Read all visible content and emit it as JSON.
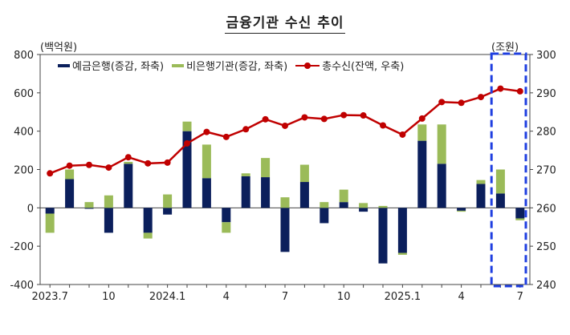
{
  "title": "금융기관 수신 추이",
  "left_unit": "(백억원)",
  "right_unit": "(조원)",
  "colors": {
    "bank": "#0b1f5c",
    "nonbank": "#9bbb59",
    "total": "#c00000",
    "highlight": "#1f3fe0"
  },
  "chart_data": {
    "type": "bar",
    "categories": [
      "2023.7",
      "2023.8",
      "2023.9",
      "2023.10",
      "2023.11",
      "2023.12",
      "2024.1",
      "2024.2",
      "2024.3",
      "2024.4",
      "2024.5",
      "2024.6",
      "2024.7",
      "2024.8",
      "2024.9",
      "2024.10",
      "2024.11",
      "2024.12",
      "2025.1",
      "2025.2",
      "2025.3",
      "2025.4",
      "2025.5",
      "2025.6",
      "2025.7"
    ],
    "x_tick_labels": [
      "2023.7",
      "",
      "",
      "10",
      "",
      "",
      "2024.1",
      "",
      "",
      "4",
      "",
      "",
      "7",
      "",
      "",
      "10",
      "",
      "",
      "2025.1",
      "",
      "",
      "4",
      "",
      "",
      "7"
    ],
    "series": [
      {
        "name": "예금은행(증감, 좌축)",
        "type": "bar",
        "axis": "left",
        "values": [
          -30,
          150,
          -5,
          -130,
          230,
          -130,
          -35,
          400,
          155,
          -75,
          165,
          160,
          -230,
          135,
          -80,
          30,
          -20,
          -290,
          -235,
          350,
          230,
          -15,
          125,
          75,
          -55
        ]
      },
      {
        "name": "비은행기관(증감, 좌축)",
        "type": "bar",
        "axis": "left",
        "values": [
          -100,
          50,
          30,
          65,
          10,
          -30,
          70,
          50,
          175,
          -55,
          15,
          100,
          55,
          90,
          30,
          65,
          25,
          10,
          -10,
          85,
          205,
          -5,
          20,
          125,
          -10
        ]
      },
      {
        "name": "총수신(잔액, 우축)",
        "type": "line",
        "axis": "right",
        "values": [
          269,
          271,
          271.2,
          270.5,
          273.2,
          271.6,
          271.8,
          276.8,
          279.8,
          278.5,
          280.5,
          283.1,
          281.4,
          283.6,
          283.2,
          284.2,
          284.1,
          281.5,
          279.1,
          283.3,
          287.6,
          287.4,
          288.9,
          291.1,
          290.4
        ]
      }
    ],
    "left_axis": {
      "min": -400,
      "max": 800,
      "step": 200,
      "label": "(백억원)"
    },
    "right_axis": {
      "min": 240,
      "max": 300,
      "step": 10,
      "label": "(조원)"
    },
    "legend_position": "top-left",
    "grid": false,
    "highlight": {
      "from": "2025.6",
      "to": "2025.7",
      "style": "dashed box"
    }
  }
}
